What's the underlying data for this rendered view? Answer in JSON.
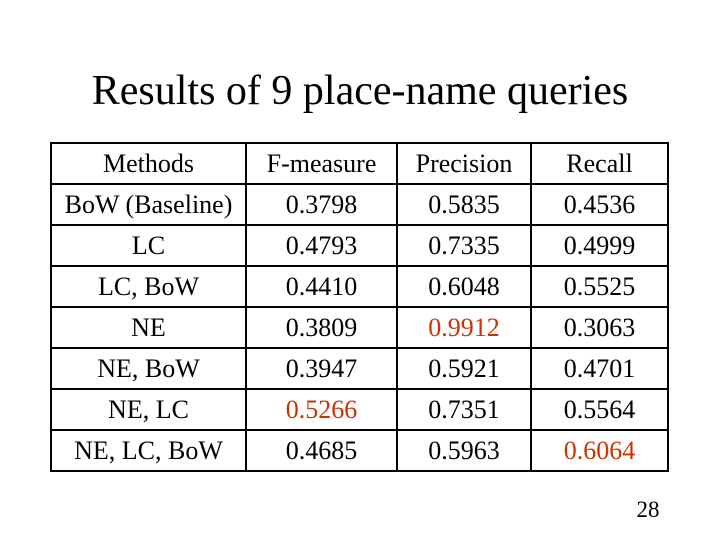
{
  "slide": {
    "title": "Results of 9 place-name queries",
    "page_number": "28"
  },
  "colors": {
    "background": "#FFFFFF",
    "text": "#000000",
    "border": "#000000",
    "highlight_red": "#CC3300"
  },
  "results_table": {
    "columns": [
      "Methods",
      "F-measure",
      "Precision",
      "Recall"
    ],
    "rows": [
      {
        "cells": [
          "BoW (Baseline)",
          "0.3798",
          "0.5835",
          "0.4536"
        ]
      },
      {
        "cells": [
          "LC",
          "0.4793",
          "0.7335",
          "0.4999"
        ]
      },
      {
        "cells": [
          "LC, BoW",
          "0.4410",
          "0.6048",
          "0.5525"
        ]
      },
      {
        "cells": [
          "NE",
          "0.3809",
          "0.9912",
          "0.3063"
        ]
      },
      {
        "cells": [
          "NE, BoW",
          "0.3947",
          "0.5921",
          "0.4701"
        ]
      },
      {
        "cells": [
          "NE, LC",
          "0.5266",
          "0.7351",
          "0.5564"
        ]
      },
      {
        "cells": [
          "NE, LC, BoW",
          "0.4685",
          "0.5963",
          "0.6064"
        ]
      }
    ],
    "highlighted_values": [
      {
        "row": 3,
        "column": "Precision",
        "value": "0.9912"
      },
      {
        "row": 5,
        "column": "F-measure",
        "value": "0.5266"
      },
      {
        "row": 6,
        "column": "Recall",
        "value": "0.6064"
      }
    ]
  }
}
